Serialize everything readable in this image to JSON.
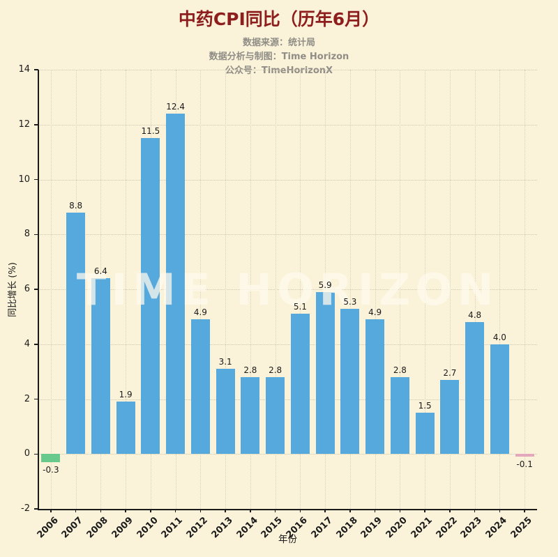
{
  "title": "中药CPI同比（历年6月）",
  "subtitle_lines": [
    "数据来源：统计局",
    "数据分析与制图：Time Horizon",
    "公众号：TimeHorizonX"
  ],
  "watermark": "TIME HORIZON",
  "colors": {
    "background": "#FBF3D9",
    "title": "#8E1D1D",
    "subtitle": "#8F8D86",
    "bar_default": "#56A9DD",
    "bar_first_negative": "#67C98C",
    "bar_last_negative": "#E3A8BC",
    "axis_text": "#1A1A1A"
  },
  "chart_data": {
    "type": "bar",
    "title": "中药CPI同比（历年6月）",
    "xlabel": "年份",
    "ylabel": "同比增长 (%)",
    "ylim": [
      -2,
      14
    ],
    "ytick_step": 2,
    "grid": "dotted-both-axes",
    "legend": "none",
    "categories": [
      "2006",
      "2007",
      "2008",
      "2009",
      "2010",
      "2011",
      "2012",
      "2013",
      "2014",
      "2015",
      "2016",
      "2017",
      "2018",
      "2019",
      "2020",
      "2021",
      "2022",
      "2023",
      "2024",
      "2025"
    ],
    "values": [
      -0.3,
      8.8,
      6.4,
      1.9,
      11.5,
      12.4,
      4.9,
      3.1,
      2.8,
      2.8,
      5.1,
      5.9,
      5.3,
      4.9,
      2.8,
      1.5,
      2.7,
      4.8,
      4.0,
      -0.1
    ],
    "bar_color_default": "#56A9DD",
    "bar_color_overrides": {
      "0": "#67C98C",
      "19": "#E3A8BC"
    }
  }
}
